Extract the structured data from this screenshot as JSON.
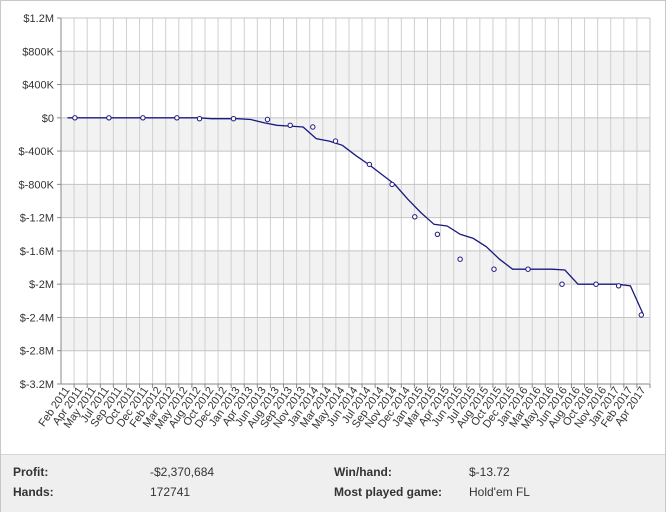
{
  "chart_data": {
    "type": "line",
    "title": "",
    "xlabel": "",
    "ylabel": "",
    "ylim": [
      -3200000,
      1200000
    ],
    "yticks": [
      1200000,
      800000,
      400000,
      0,
      -400000,
      -800000,
      -1200000,
      -1600000,
      -2000000,
      -2400000,
      -2800000,
      -3200000
    ],
    "ytick_labels": [
      "$1.2M",
      "$800K",
      "$400K",
      "$0",
      "$-400K",
      "$-800K",
      "$-1.2M",
      "$-1.6M",
      "$-2M",
      "$-2.4M",
      "$-2.8M",
      "$-3.2M"
    ],
    "xtick_labels": [
      "Feb 2011",
      "Apr 2011",
      "May 2011",
      "Jul 2011",
      "Sep 2011",
      "Oct 2011",
      "Dec 2011",
      "Feb 2012",
      "Mar 2012",
      "May 2012",
      "Aug 2012",
      "Oct 2012",
      "Dec 2012",
      "Jan 2013",
      "Apr 2013",
      "Jun 2013",
      "Aug 2013",
      "Sep 2013",
      "Nov 2013",
      "Jan 2014",
      "Mar 2014",
      "May 2014",
      "Jun 2014",
      "Jul 2014",
      "Sep 2014",
      "Nov 2014",
      "Dec 2014",
      "Jan 2015",
      "Mar 2015",
      "Apr 2015",
      "Jun 2015",
      "Jul 2015",
      "Aug 2015",
      "Oct 2015",
      "Dec 2015",
      "Jan 2016",
      "Mar 2016",
      "May 2016",
      "Jun 2016",
      "Aug 2016",
      "Oct 2016",
      "Nov 2016",
      "Jan 2017",
      "Feb 2017",
      "Apr 2017"
    ],
    "grid": true,
    "line_color": "#1a1a80",
    "series": [
      {
        "x": [
          "Feb 2011",
          "Apr 2011",
          "May 2011",
          "Jul 2011",
          "Sep 2011",
          "Oct 2011",
          "Dec 2011",
          "Feb 2012",
          "Mar 2012",
          "May 2012",
          "Aug 2012",
          "Oct 2012",
          "Dec 2012",
          "Jan 2013",
          "Apr 2013",
          "Jun 2013",
          "Aug 2013",
          "Sep 2013",
          "Nov 2013",
          "Jan 2014",
          "Mar 2014",
          "May 2014",
          "Jun 2014",
          "Jul 2014",
          "Sep 2014",
          "Nov 2014",
          "Dec 2014",
          "Jan 2015",
          "Mar 2015",
          "Apr 2015",
          "Jun 2015",
          "Jul 2015",
          "Aug 2015",
          "Oct 2015",
          "Dec 2015",
          "Jan 2016",
          "Mar 2016",
          "May 2016",
          "Jun 2016",
          "Aug 2016",
          "Oct 2016",
          "Nov 2016",
          "Jan 2017",
          "Feb 2017",
          "Apr 2017"
        ],
        "values": [
          0,
          0,
          0,
          0,
          0,
          0,
          0,
          0,
          0,
          0,
          0,
          -10000,
          -10000,
          -10000,
          -20000,
          -60000,
          -90000,
          -100000,
          -110000,
          -250000,
          -280000,
          -330000,
          -450000,
          -560000,
          -680000,
          -800000,
          -980000,
          -1140000,
          -1280000,
          -1300000,
          -1400000,
          -1450000,
          -1550000,
          -1700000,
          -1820000,
          -1820000,
          -1820000,
          -1820000,
          -1830000,
          -2000000,
          -2000000,
          -2000000,
          -2000000,
          -2020000,
          -2370000
        ],
        "markers": [
          [
            1,
            0
          ],
          [
            4,
            0
          ],
          [
            7,
            0
          ],
          [
            10,
            0
          ],
          [
            12,
            -10000
          ],
          [
            15,
            -10000
          ],
          [
            18,
            -20000
          ],
          [
            20,
            -90000
          ],
          [
            22,
            -110000
          ],
          [
            24,
            -280000
          ],
          [
            27,
            -560000
          ],
          [
            29,
            -800000
          ],
          [
            31,
            -1190000
          ],
          [
            33,
            -1400000
          ],
          [
            35,
            -1700000
          ],
          [
            38,
            -1820000
          ],
          [
            41,
            -1820000
          ],
          [
            44,
            -2000000
          ],
          [
            47,
            -2000000
          ],
          [
            49,
            -2020000
          ],
          [
            51,
            -2370000
          ]
        ]
      }
    ]
  },
  "stats": {
    "profit_label": "Profit:",
    "profit_value": "-$2,370,684",
    "hands_label": "Hands:",
    "hands_value": "172741",
    "winhand_label": "Win/hand:",
    "winhand_value": "$-13.72",
    "game_label": "Most played game:",
    "game_value": "Hold'em FL"
  }
}
